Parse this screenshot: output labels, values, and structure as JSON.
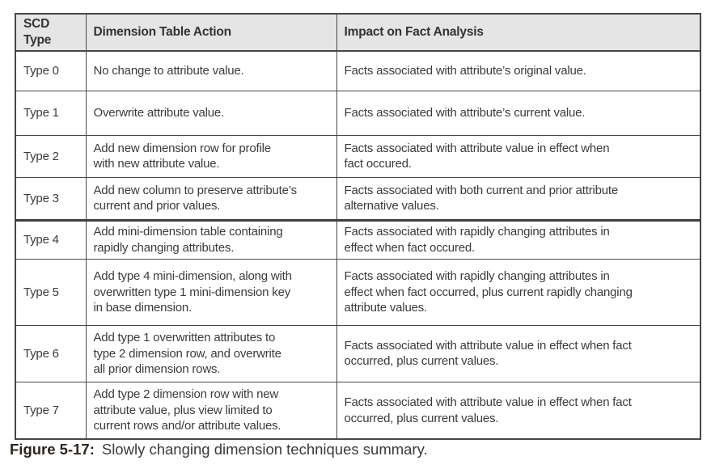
{
  "table": {
    "columns": [
      "SCD Type",
      "Dimension Table Action",
      "Impact on Fact Analysis"
    ],
    "rows": [
      {
        "type": "Type 0",
        "action": "No change to attribute value.",
        "impact": "Facts associated with attribute’s original value."
      },
      {
        "type": "Type 1",
        "action": "Overwrite attribute value.",
        "impact": "Facts associated with attribute’s current value."
      },
      {
        "type": "Type 2",
        "action": "Add new dimension row for profile\nwith new attribute value.",
        "impact": "Facts associated with attribute value in effect when\nfact occured."
      },
      {
        "type": "Type 3",
        "action": "Add new column to preserve attribute’s\ncurrent and prior values.",
        "impact": "Facts associated with both current and prior attribute\nalternative values."
      },
      {
        "type": "Type 4",
        "action": "Add mini-dimension table containing\nrapidly changing attributes.",
        "impact": "Facts associated with rapidly changing attributes in\neffect when fact occured."
      },
      {
        "type": "Type 5",
        "action": "Add type 4 mini-dimension, along with\noverwritten type 1 mini-dimension key\nin base dimension.",
        "impact": "Facts associated with rapidly changing attributes in\neffect when fact occurred, plus current rapidly changing\nattribute values."
      },
      {
        "type": "Type 6",
        "action": "Add type 1 overwritten attributes to\ntype 2 dimension row, and overwrite\nall prior dimension rows.",
        "impact": "Facts associated with attribute value in effect when fact\noccurred, plus current values."
      },
      {
        "type": "Type 7",
        "action": "Add type 2 dimension row with new\nattribute value, plus view limited to\ncurrent rows and/or attribute values.",
        "impact": "Facts associated with attribute value in effect when fact\noccurred, plus current values."
      }
    ]
  },
  "caption": {
    "label": "Figure 5-17:",
    "text": "Slowly changing dimension techniques summary."
  },
  "colors": {
    "header_bg": "#e5e5e5",
    "border": "#474747",
    "text": "#3b3b3b"
  }
}
